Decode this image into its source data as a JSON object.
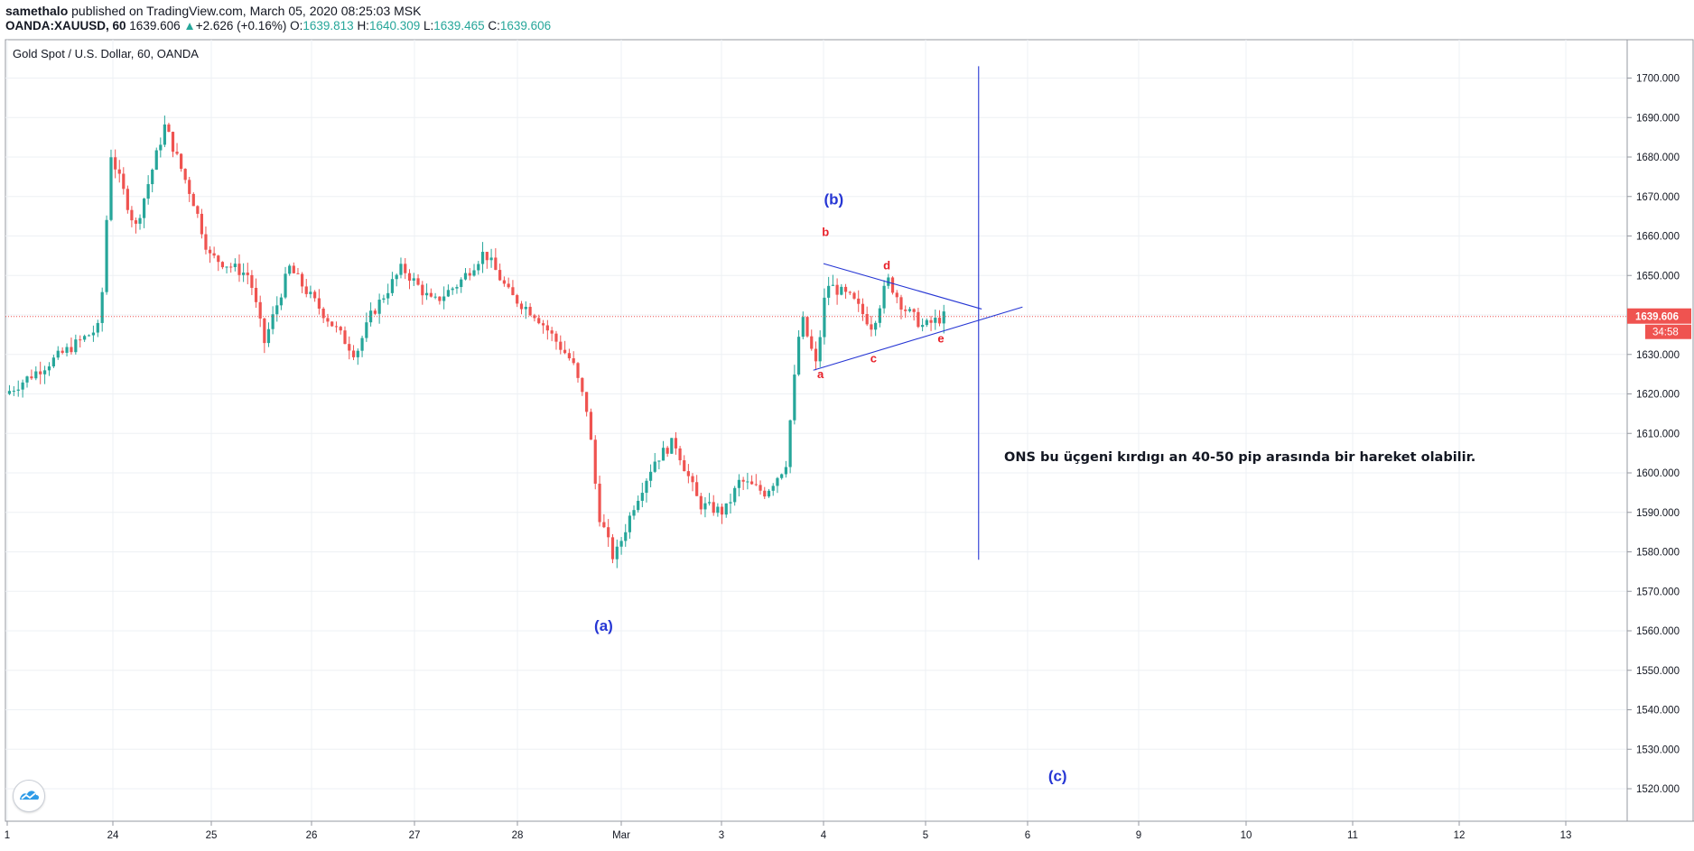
{
  "header": {
    "author": "samethalo",
    "published_text": "published on TradingView.com, March 05, 2020 08:25:03 MSK",
    "symbol": "OANDA:XAUUSD, 60",
    "last_price": "1639.606",
    "change_arrow": "▲",
    "change": "+2.626 (+0.16%)",
    "o_label": "O:",
    "o_value": "1639.813",
    "h_label": "H:",
    "h_value": "1640.309",
    "l_label": "L:",
    "l_value": "1639.465",
    "c_label": "C:",
    "c_value": "1639.606"
  },
  "chart_data": {
    "type": "candlestick",
    "title": "Gold Spot / U.S. Dollar, 60, OANDA",
    "y_axis": {
      "ylim": [
        1511,
        1715
      ],
      "ticks": [
        1700,
        1690,
        1680,
        1670,
        1660,
        1650,
        1640,
        1630,
        1620,
        1610,
        1600,
        1590,
        1580,
        1570,
        1560,
        1550,
        1540,
        1530,
        1520
      ],
      "tick_labels": [
        "1700.000",
        "1690.000",
        "1680.000",
        "1670.000",
        "1660.000",
        "1650.000",
        "1640.000",
        "1630.000",
        "1620.000",
        "1610.000",
        "1600.000",
        "1590.000",
        "1580.000",
        "1570.000",
        "1560.000",
        "1550.000",
        "1540.000",
        "1530.000",
        "1520.000"
      ]
    },
    "x_axis": {
      "tick_labels": [
        "1",
        "24",
        "25",
        "26",
        "27",
        "28",
        "Mar",
        "3",
        "4",
        "5",
        "6",
        "9",
        "10",
        "11",
        "12",
        "13"
      ]
    },
    "grid": true,
    "current_price": {
      "value": 1639.606,
      "label": "1639.606",
      "countdown": "34:58",
      "color": "#ef5350"
    },
    "colors": {
      "up": "#26a69a",
      "down": "#ef5350",
      "drawing": "#2636d4",
      "label_red": "#e8212a"
    },
    "price_path": [
      {
        "t": 0.0,
        "p": 1620
      },
      {
        "t": 0.9,
        "p": 1637
      },
      {
        "t": 1.0,
        "p": 1681
      },
      {
        "t": 1.25,
        "p": 1662
      },
      {
        "t": 1.55,
        "p": 1688
      },
      {
        "t": 1.85,
        "p": 1668
      },
      {
        "t": 2.0,
        "p": 1655
      },
      {
        "t": 2.4,
        "p": 1650
      },
      {
        "t": 2.55,
        "p": 1633
      },
      {
        "t": 2.8,
        "p": 1652
      },
      {
        "t": 3.0,
        "p": 1645
      },
      {
        "t": 3.45,
        "p": 1630
      },
      {
        "t": 3.6,
        "p": 1640
      },
      {
        "t": 3.9,
        "p": 1652
      },
      {
        "t": 4.2,
        "p": 1643
      },
      {
        "t": 4.45,
        "p": 1648
      },
      {
        "t": 4.7,
        "p": 1656
      },
      {
        "t": 4.95,
        "p": 1645
      },
      {
        "t": 5.2,
        "p": 1640
      },
      {
        "t": 5.55,
        "p": 1628
      },
      {
        "t": 5.7,
        "p": 1615
      },
      {
        "t": 5.8,
        "p": 1590
      },
      {
        "t": 5.95,
        "p": 1578
      },
      {
        "t": 6.15,
        "p": 1592
      },
      {
        "t": 6.35,
        "p": 1603
      },
      {
        "t": 6.55,
        "p": 1608
      },
      {
        "t": 6.8,
        "p": 1592
      },
      {
        "t": 7.05,
        "p": 1590
      },
      {
        "t": 7.2,
        "p": 1598
      },
      {
        "t": 7.45,
        "p": 1595
      },
      {
        "t": 7.65,
        "p": 1602
      },
      {
        "t": 7.8,
        "p": 1640
      },
      {
        "t": 7.95,
        "p": 1627
      },
      {
        "t": 8.05,
        "p": 1648
      },
      {
        "t": 8.3,
        "p": 1644
      },
      {
        "t": 8.5,
        "p": 1637
      },
      {
        "t": 8.65,
        "p": 1649
      },
      {
        "t": 8.8,
        "p": 1642
      },
      {
        "t": 9.0,
        "p": 1637
      },
      {
        "t": 9.2,
        "p": 1639.6
      }
    ],
    "x_slot_days": [
      0,
      1,
      2,
      3,
      4,
      5,
      6,
      7,
      8,
      9,
      10,
      11,
      12,
      13,
      14,
      15
    ],
    "drawings": {
      "triangle_upper_line": [
        {
          "t": 8.0,
          "p": 1653
        },
        {
          "t": 9.55,
          "p": 1641.5
        }
      ],
      "triangle_lower_line": [
        {
          "t": 7.9,
          "p": 1626
        },
        {
          "t": 9.95,
          "p": 1642
        }
      ],
      "vertical_line": {
        "t": 9.52,
        "p_top": 1703,
        "p_bottom": 1578
      }
    },
    "annotations": [
      {
        "text": "(a)",
        "t": 5.83,
        "p": 1560,
        "color": "#2636d4"
      },
      {
        "text": "(b)",
        "t": 8.1,
        "p": 1668,
        "color": "#2636d4"
      },
      {
        "text": "(c)",
        "t": 10.27,
        "p": 1522,
        "color": "#2636d4"
      },
      {
        "text": "a",
        "t": 7.97,
        "p": 1624,
        "color": "#e8212a"
      },
      {
        "text": "b",
        "t": 8.02,
        "p": 1660,
        "color": "#e8212a"
      },
      {
        "text": "c",
        "t": 8.49,
        "p": 1628,
        "color": "#e8212a"
      },
      {
        "text": "d",
        "t": 8.62,
        "p": 1651.5,
        "color": "#e8212a"
      },
      {
        "text": "e",
        "t": 9.15,
        "p": 1633,
        "color": "#e8212a"
      },
      {
        "text": "ONS bu üçgeni kırdıgı an 40-50 pip arasında bir hareket olabilir.",
        "t": 9.77,
        "p": 1603,
        "color": "#131722"
      }
    ]
  }
}
